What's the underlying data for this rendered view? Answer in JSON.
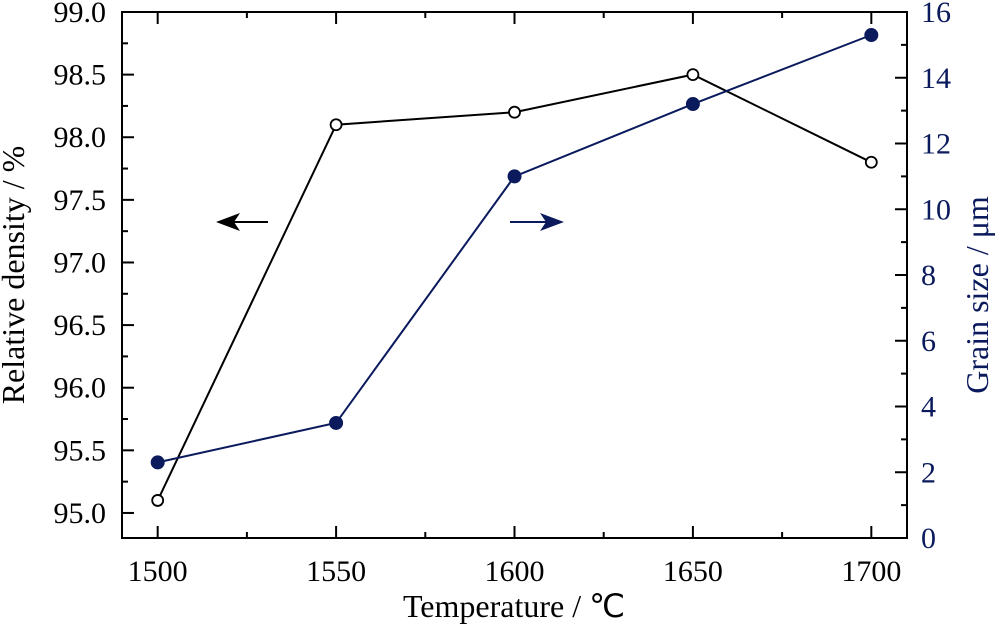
{
  "chart_data": {
    "type": "line",
    "xlabel": "Temperature / ℃",
    "ylabel_left": "Relative density / %",
    "ylabel_right": "Grain size / μm",
    "x": [
      1500,
      1550,
      1600,
      1650,
      1700
    ],
    "xlim": [
      1490,
      1710
    ],
    "x_ticks": [
      "1500",
      "1550",
      "1600",
      "1650",
      "1700"
    ],
    "ylim_left": [
      94.8,
      99.0
    ],
    "y_ticks_left": [
      "95.0",
      "95.5",
      "96.0",
      "96.5",
      "97.0",
      "97.5",
      "98.0",
      "98.5",
      "99.0"
    ],
    "ylim_right": [
      0,
      16
    ],
    "y_ticks_right": [
      "0",
      "2",
      "4",
      "6",
      "8",
      "10",
      "12",
      "14",
      "16"
    ],
    "grid": false,
    "series": [
      {
        "axis": "left",
        "values": [
          95.1,
          98.1,
          98.2,
          98.5,
          97.8
        ],
        "marker": "open-circle",
        "color": "#000000",
        "arrow": "left"
      },
      {
        "axis": "right",
        "values": [
          2.3,
          3.5,
          11.0,
          13.2,
          15.3
        ],
        "marker": "filled-circle",
        "color": "#0a1a5c",
        "arrow": "right"
      }
    ]
  }
}
